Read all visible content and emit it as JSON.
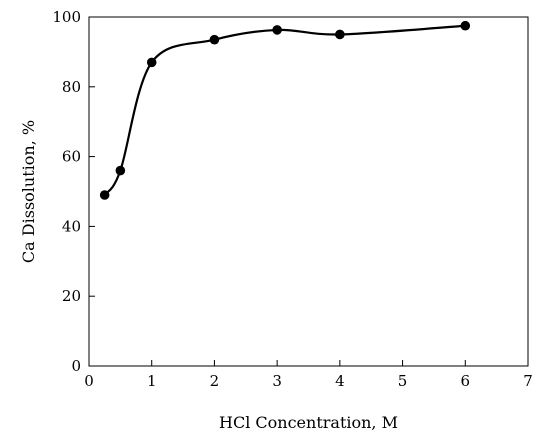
{
  "chart_data": {
    "type": "scatter",
    "title": "",
    "xlabel": "HCl Concentration, M",
    "ylabel": "Ca Dissolution, %",
    "xlim": [
      0,
      7
    ],
    "ylim": [
      0,
      100
    ],
    "x_ticks": [
      0,
      1,
      2,
      3,
      4,
      5,
      6,
      7
    ],
    "y_ticks": [
      0,
      20,
      40,
      60,
      80,
      100
    ],
    "grid": false,
    "legend": "none",
    "smooth_line": true,
    "line_color": "#000000",
    "marker_color": "#000000",
    "series": [
      {
        "x": [
          0.25,
          0.5,
          1,
          2,
          3,
          4,
          6
        ],
        "y": [
          49,
          56,
          87,
          93.5,
          96.3,
          95,
          97.5
        ]
      }
    ]
  }
}
